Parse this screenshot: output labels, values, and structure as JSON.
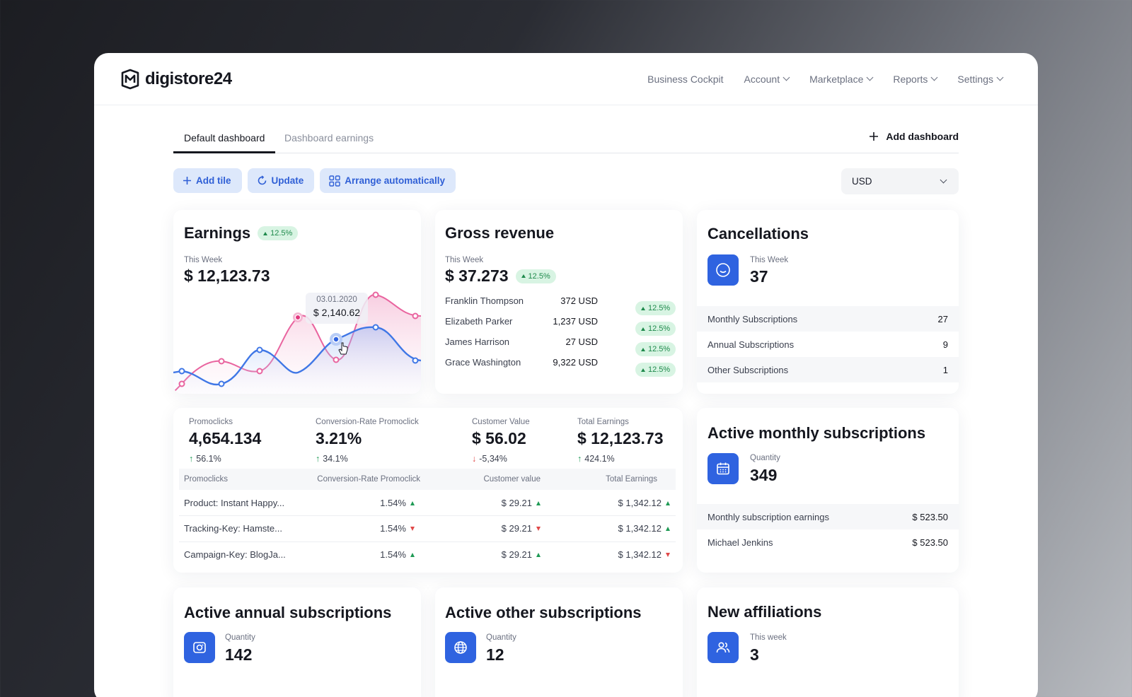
{
  "brand": {
    "name": "digistore24"
  },
  "nav": {
    "items": [
      {
        "label": "Business Cockpit",
        "dropdown": false
      },
      {
        "label": "Account",
        "dropdown": true
      },
      {
        "label": "Marketplace",
        "dropdown": true
      },
      {
        "label": "Reports",
        "dropdown": true
      },
      {
        "label": "Settings",
        "dropdown": true
      }
    ]
  },
  "tabs": {
    "items": [
      {
        "label": "Default dashboard",
        "active": true
      },
      {
        "label": "Dashboard earnings",
        "active": false
      }
    ],
    "add_label": "Add dashboard"
  },
  "toolbar": {
    "add_tile": "Add tile",
    "update": "Update",
    "arrange": "Arrange automatically",
    "currency": "USD"
  },
  "earnings": {
    "title": "Earnings",
    "badge": "12.5%",
    "period": "This Week",
    "value": "$ 12,123.73",
    "tooltip": {
      "date": "03.01.2020",
      "amount": "$ 2,140.62"
    }
  },
  "gross_revenue": {
    "title": "Gross revenue",
    "period": "This Week",
    "value": "$ 37.273",
    "badge": "12.5%",
    "rows": [
      {
        "name": "Franklin Thompson",
        "amount": "372 USD",
        "badge": "12.5%"
      },
      {
        "name": "Elizabeth Parker",
        "amount": "1,237 USD",
        "badge": "12.5%"
      },
      {
        "name": "James Harrison",
        "amount": "27 USD",
        "badge": "12.5%"
      },
      {
        "name": "Grace Washington",
        "amount": "9,322 USD",
        "badge": "12.5%"
      }
    ]
  },
  "cancellations": {
    "title": "Cancellations",
    "period": "This Week",
    "value": "37",
    "rows": [
      {
        "label": "Monthly Subscriptions",
        "value": "27"
      },
      {
        "label": "Annual Subscriptions",
        "value": "9"
      },
      {
        "label": "Other Subscriptions",
        "value": "1"
      }
    ]
  },
  "kpis": {
    "items": [
      {
        "label": "Promoclicks",
        "value": "4,654.134",
        "delta": "56.1%",
        "direction": "up"
      },
      {
        "label": "Conversion-Rate Promoclick",
        "value": "3.21%",
        "delta": "34.1%",
        "direction": "up"
      },
      {
        "label": "Customer Value",
        "value": "$ 56.02",
        "delta": "-5,34%",
        "direction": "down"
      },
      {
        "label": "Total Earnings",
        "value": "$ 12,123.73",
        "delta": "424.1%",
        "direction": "up"
      }
    ],
    "table": {
      "headers": [
        "Promoclicks",
        "Conversion-Rate Promoclick",
        "Customer value",
        "Total Earnings"
      ],
      "rows": [
        {
          "name": "Product: Instant Happy...",
          "rate": "1.54%",
          "rate_dir": "up",
          "cv": "$ 29.21",
          "cv_dir": "up",
          "total": "$ 1,342.12",
          "total_dir": "up"
        },
        {
          "name": "Tracking-Key: Hamste...",
          "rate": "1.54%",
          "rate_dir": "down",
          "cv": "$ 29.21",
          "cv_dir": "down",
          "total": "$ 1,342.12",
          "total_dir": "up"
        },
        {
          "name": "Campaign-Key: BlogJa...",
          "rate": "1.54%",
          "rate_dir": "up",
          "cv": "$ 29.21",
          "cv_dir": "up",
          "total": "$ 1,342.12",
          "total_dir": "down"
        }
      ]
    }
  },
  "active_monthly": {
    "title": "Active monthly subscriptions",
    "label": "Quantity",
    "value": "349",
    "rows": [
      {
        "label": "Monthly subscription earnings",
        "value": "$ 523.50"
      },
      {
        "label": "Michael Jenkins",
        "value": "$ 523.50"
      }
    ]
  },
  "active_annual": {
    "title": "Active annual subscriptions",
    "label": "Quantity",
    "value": "142"
  },
  "active_other": {
    "title": "Active other subscriptions",
    "label": "Quantity",
    "value": "12"
  },
  "new_affiliations": {
    "title": "New affiliations",
    "label": "This week",
    "value": "3"
  },
  "colors": {
    "accent": "#2f63e0",
    "accent_soft": "#dde8fb",
    "positive": "#1f9a55",
    "negative": "#e04848",
    "pink": "#e9649f",
    "blue_line": "#3f77e6"
  }
}
